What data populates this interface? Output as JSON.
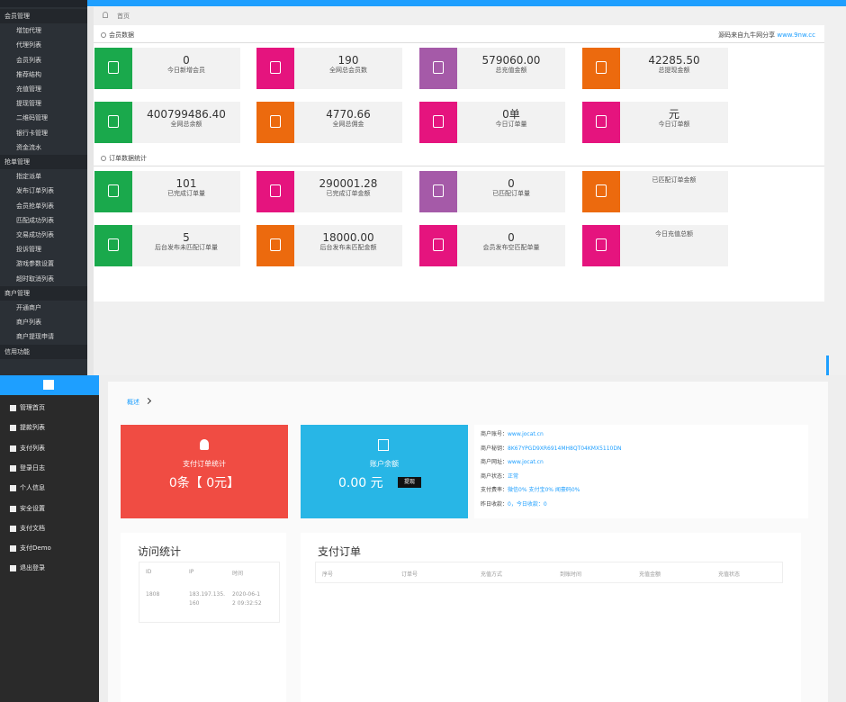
{
  "top_panel": {
    "sidebar": [
      {
        "title": "会员管理",
        "items": [
          "增加代理",
          "代理列表",
          "会员列表",
          "推荐结构",
          "充值管理",
          "提现管理",
          "二维码管理",
          "银行卡管理",
          "资金流水"
        ]
      },
      {
        "title": "抢单管理",
        "items": [
          "指定派单",
          "发布订单列表",
          "会员抢单列表",
          "匹配成功列表",
          "交易成功列表",
          "投诉管理",
          "游戏参数设置",
          "超时取消列表"
        ]
      },
      {
        "title": "商户管理",
        "items": [
          "开通商户",
          "商户列表",
          "商户提现申请"
        ]
      },
      {
        "title": "信用功能",
        "items": []
      }
    ],
    "breadcrumb": "首页",
    "sections": [
      {
        "title": "会员数据",
        "note": "源码来自九牛网分享",
        "note_link": "www.9nw.cc",
        "cards": [
          {
            "value": "0",
            "label": "今日新增会员",
            "color": "#1aa94c"
          },
          {
            "value": "190",
            "label": "全网总会员数",
            "color": "#e5147e"
          },
          {
            "value": "579060.00",
            "label": "总充值金额",
            "color": "#a55aa8"
          },
          {
            "value": "42285.50",
            "label": "总提现金额",
            "color": "#ec6a0e"
          },
          {
            "value": "400799486.40",
            "label": "全网总余额",
            "color": "#1aa94c"
          },
          {
            "value": "4770.66",
            "label": "全网总佣金",
            "color": "#ec6a0e"
          },
          {
            "value": "0单",
            "label": "今日订单量",
            "color": "#e5147e"
          },
          {
            "value": "元",
            "label": "今日订单额",
            "color": "#e5147e"
          }
        ]
      },
      {
        "title": "订单数据统计",
        "cards": [
          {
            "value": "101",
            "label": "已完成订单量",
            "color": "#1aa94c"
          },
          {
            "value": "290001.28",
            "label": "已完成订单金额",
            "color": "#e5147e"
          },
          {
            "value": "0",
            "label": "已匹配订单量",
            "color": "#a55aa8"
          },
          {
            "label": "已匹配订单金额",
            "color": "#ec6a0e"
          },
          {
            "value": "5",
            "label": "后台发布未匹配订单量",
            "color": "#1aa94c"
          },
          {
            "value": "18000.00",
            "label": "后台发布未匹配金额",
            "color": "#ec6a0e"
          },
          {
            "value": "0",
            "label": "会员发布空匹配单量",
            "color": "#e5147e"
          },
          {
            "label": "今日充值总额",
            "color": "#e5147e"
          }
        ]
      }
    ]
  },
  "bottom_panel": {
    "sidebar": [
      "管理首页",
      "提款列表",
      "支付列表",
      "登录日志",
      "个人信息",
      "安全设置",
      "支付文档",
      "支付Demo",
      "退出登录"
    ],
    "breadcrumb": "概述",
    "order_card": {
      "title": "支付订单统计",
      "value": "0条【 0元】"
    },
    "balance_card": {
      "title": "账户余额",
      "value": "0.00 元",
      "button": "提现"
    },
    "info": [
      {
        "label": "商户账号：",
        "value": "www.jocat.cn"
      },
      {
        "label": "商户秘钥：",
        "value": "8K67YPGD9XR6914MH8QT04KMX5110DN"
      },
      {
        "label": "商户网址：",
        "value": "www.jocat.cn"
      },
      {
        "label": "商户状态：",
        "value": "正常"
      },
      {
        "label": "支付费率：",
        "value": "微信0% 支付宝0% 闻豪码0%"
      },
      {
        "label": "昨日收款：",
        "value": "0，今日收款：0"
      }
    ],
    "visits": {
      "title": "访问统计",
      "headers": [
        "ID",
        "IP",
        "时间"
      ],
      "rows": [
        [
          "1808",
          "183.197.135.160",
          "2020-06-12 09:32:52"
        ]
      ]
    },
    "orders": {
      "title": "支付订单",
      "headers": [
        "序号",
        "订单号",
        "充值方式",
        "到账时间",
        "充值金额",
        "充值状态"
      ]
    }
  }
}
